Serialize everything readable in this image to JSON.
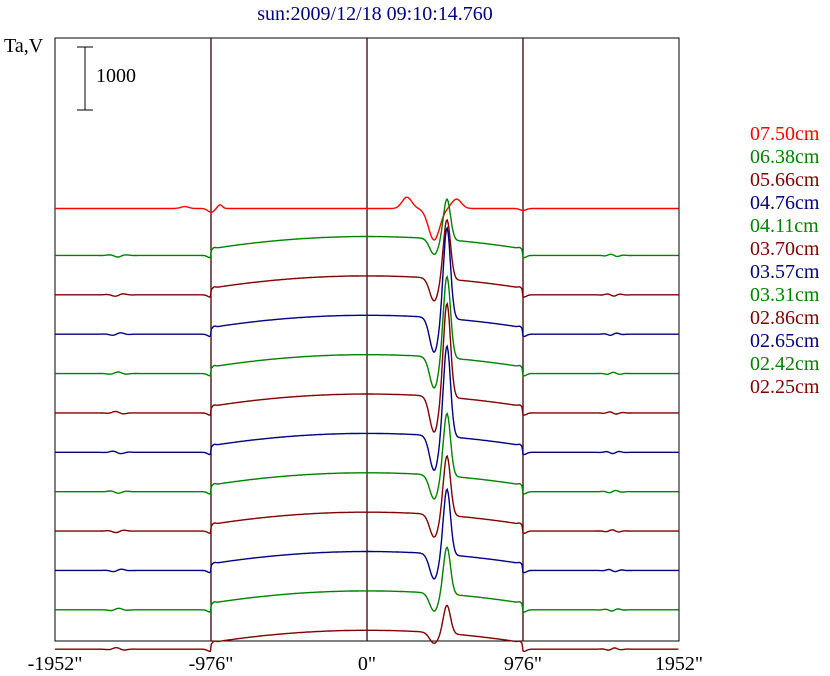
{
  "chart_data": {
    "type": "line",
    "title": "sun:2009/12/18 09:10:14.760",
    "ylabel": "Ta,V",
    "scale_bar_label": "1000",
    "x_ticks": [
      "-1952\"",
      "-976\"",
      "0\"",
      "976\"",
      "1952\""
    ],
    "x_tick_values": [
      -1952,
      -976,
      0,
      976,
      1952
    ],
    "xlim": [
      -1952,
      1952
    ],
    "solar_limb_markers": [
      -976,
      0,
      976
    ],
    "scale_bar_value": 1000,
    "series": [
      {
        "name": "07.50cm",
        "color": "#ff0000",
        "offset": 7500,
        "amp": 1.0
      },
      {
        "name": "06.38cm",
        "color": "#008000",
        "offset": 6875,
        "amp": 0.65
      },
      {
        "name": "05.66cm",
        "color": "#800000",
        "offset": 6250,
        "amp": 0.95
      },
      {
        "name": "04.76cm",
        "color": "#000080",
        "offset": 5625,
        "amp": 1.45
      },
      {
        "name": "04.11cm",
        "color": "#008000",
        "offset": 5000,
        "amp": 1.3
      },
      {
        "name": "03.70cm",
        "color": "#800000",
        "offset": 4375,
        "amp": 1.5
      },
      {
        "name": "03.57cm",
        "color": "#000080",
        "offset": 3750,
        "amp": 1.45
      },
      {
        "name": "03.31cm",
        "color": "#008000",
        "offset": 3125,
        "amp": 1.0
      },
      {
        "name": "02.86cm",
        "color": "#800000",
        "offset": 2500,
        "amp": 0.95
      },
      {
        "name": "02.65cm",
        "color": "#000080",
        "offset": 1875,
        "amp": 1.05
      },
      {
        "name": "02.42cm",
        "color": "#008000",
        "offset": 1250,
        "amp": 0.75
      },
      {
        "name": "02.25cm",
        "color": "#800000",
        "offset": 625,
        "amp": 0.45
      }
    ],
    "legend_placement": "right",
    "grid": false
  }
}
